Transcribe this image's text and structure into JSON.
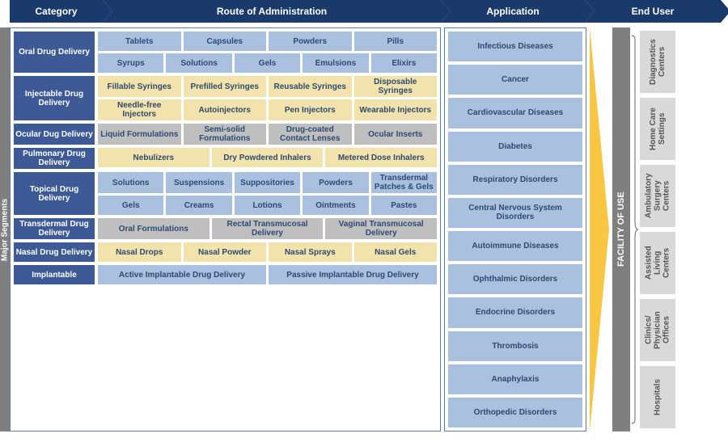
{
  "header": {
    "category": "Category",
    "route": "Route of Administration",
    "application": "Application",
    "enduser": "End User"
  },
  "sidebar": {
    "major_segments": "Major Segments",
    "facility_of_use": "FACILITY OF USE"
  },
  "categories": {
    "oral": {
      "label": "Oral Drug Delivery",
      "color": "c-blue",
      "rows": [
        [
          "Tablets",
          "Capsules",
          "Powders",
          "Pills"
        ],
        [
          "Syrups",
          "Solutions",
          "Gels",
          "Emulsions",
          "Elixirs"
        ]
      ]
    },
    "injectable": {
      "label": "Injectable Drug Delivery",
      "color": "c-yellow",
      "rows": [
        [
          "Fillable Syringes",
          "Prefilled Syringes",
          "Reusable Syringes",
          "Disposable Syringes"
        ],
        [
          "Needle-free Injectors",
          "Autoinjectors",
          "Pen Injectors",
          "Wearable Injectors"
        ]
      ]
    },
    "ocular": {
      "label": "Ocular Dug Delivery",
      "color": "c-gray",
      "rows": [
        [
          "Liquid Formulations",
          "Semi-solid Formulations",
          "Drug-coated Contact Lenses",
          "Ocular Inserts"
        ]
      ]
    },
    "pulmonary": {
      "label": "Pulmonary Drug Delivery",
      "color": "c-yellow",
      "rows": [
        [
          "Nebulizers",
          "Dry Powdered Inhalers",
          "Metered Dose Inhalers"
        ]
      ]
    },
    "topical": {
      "label": "Topical Drug Delivery",
      "color": "c-blue",
      "rows": [
        [
          "Solutions",
          "Suspensions",
          "Suppositories",
          "Powders",
          "Transdermal Patches & Gels"
        ],
        [
          "Gels",
          "Creams",
          "Lotions",
          "Ointments",
          "Pastes"
        ]
      ]
    },
    "transdermal": {
      "label": "Transdermal Drug Delivery",
      "color": "c-gray",
      "rows": [
        [
          "Oral Formulations",
          "Rectal Transmucosal Delivery",
          "Vaginal Transmucosal Delivery"
        ]
      ]
    },
    "nasal": {
      "label": "Nasal Drug Delivery",
      "color": "c-yellow",
      "rows": [
        [
          "Nasal Drops",
          "Nasal Powder",
          "Nasal Sprays",
          "Nasal Gels"
        ]
      ]
    },
    "implantable": {
      "label": "Implantable",
      "color": "c-blue",
      "rows": [
        [
          "Active Implantable Drug Delivery",
          "Passive Implantable Drug Delivery"
        ]
      ]
    }
  },
  "applications": [
    "Infectious Diseases",
    "Cancer",
    "Cardiovascular Diseases",
    "Diabetes",
    "Respiratory Disorders",
    "Central Nervous System Disorders",
    "Autoimmune Diseases",
    "Ophthalmic Disorders",
    "Endocrine Disorders",
    "Thrombosis",
    "Anaphylaxis",
    "Orthopedic Disorders"
  ],
  "endusers": [
    "Diagnostics Centers",
    "Home Care Settings",
    "Ambulatory Surgery Centers",
    "Assisted Living Centers",
    "Clinics/ Physician Offices",
    "Hospitals"
  ],
  "colors": {
    "header_bg": "#1a3a6b",
    "cat_bg": "#3d5a96",
    "blue_box": "#a9c0df",
    "yellow_box": "#f2e2ab",
    "gray_box": "#bfbfbf",
    "sidebar_gray": "#7f7f7f",
    "triangle": "#f9c642",
    "enduser_bg": "#d9d9d9",
    "text_dark": "#2e4a72"
  }
}
